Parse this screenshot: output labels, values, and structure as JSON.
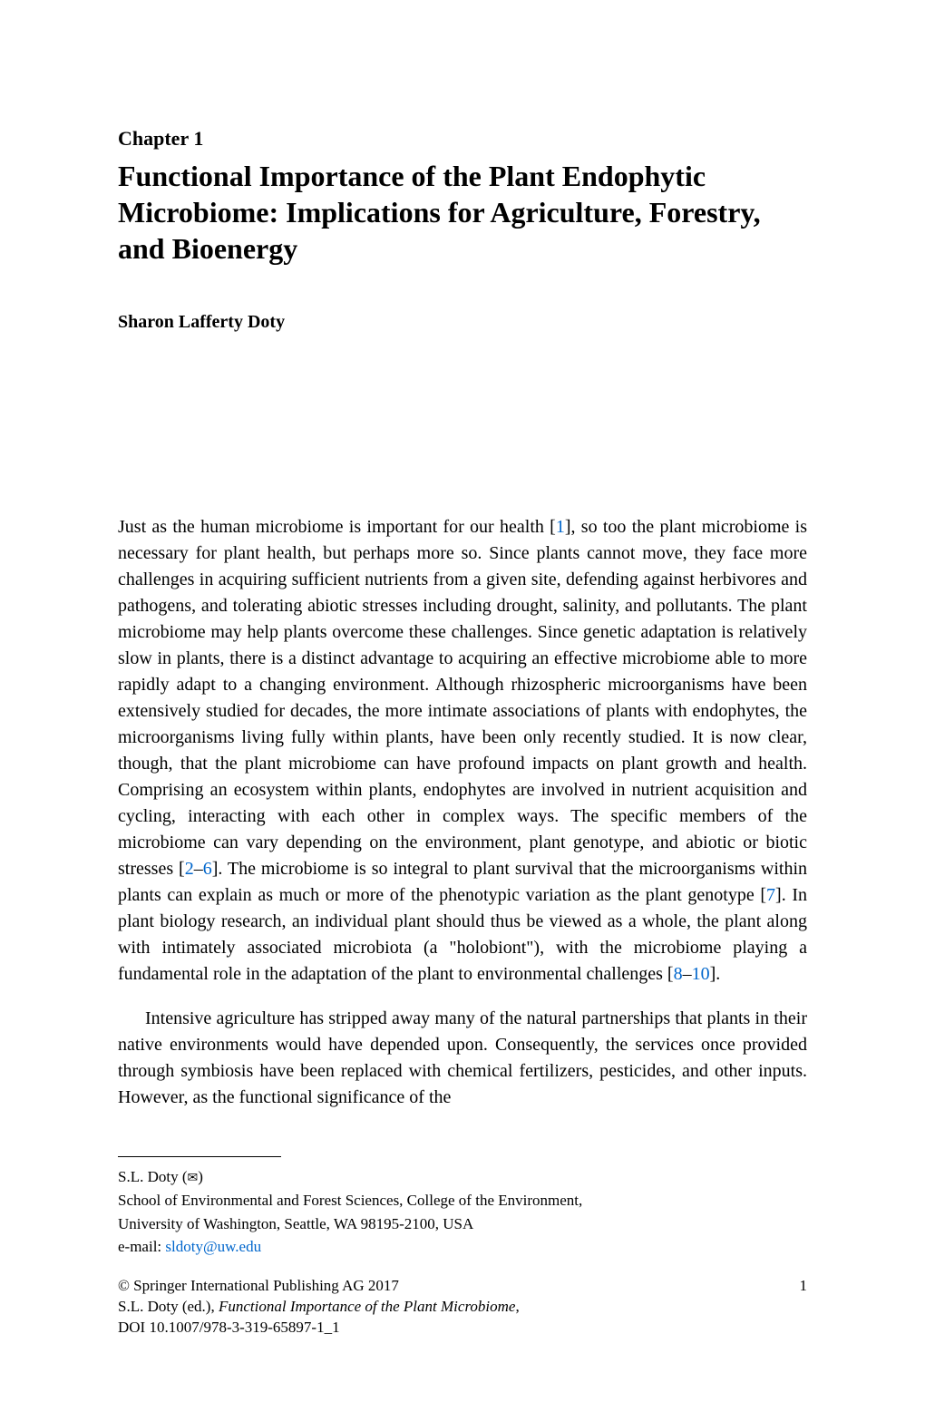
{
  "chapter": {
    "label": "Chapter 1",
    "title": "Functional Importance of the Plant Endophytic Microbiome: Implications for Agriculture, Forestry, and Bioenergy"
  },
  "author": "Sharon Lafferty Doty",
  "body": {
    "para1_a": "Just as the human microbiome is important for our health [",
    "cite1": "1",
    "para1_b": "], so too the plant microbiome is necessary for plant health, but perhaps more so. Since plants cannot move, they face more challenges in acquiring sufficient nutrients from a given site, defending against herbivores and pathogens, and tolerating abiotic stresses including drought, salinity, and pollutants. The plant microbiome may help plants overcome these challenges. Since genetic adaptation is relatively slow in plants, there is a distinct advantage to acquiring an effective microbiome able to more rapidly adapt to a changing environment. Although rhizospheric microorganisms have been extensively studied for decades, the more intimate associations of plants with endophytes, the microorganisms living fully within plants, have been only recently studied. It is now clear, though, that the plant microbiome can have profound impacts on plant growth and health. Comprising an ecosystem within plants, endophytes are involved in nutrient acquisition and cycling, interacting with each other in complex ways. The specific members of the microbiome can vary depending on the environment, plant genotype, and abiotic or biotic stresses [",
    "cite2": "2",
    "dash1": "–",
    "cite6": "6",
    "para1_c": "]. The microbiome is so integral to plant survival that the microorganisms within plants can explain as much or more of the phenotypic variation as the plant genotype [",
    "cite7": "7",
    "para1_d": "]. In plant biology research, an individual plant should thus be viewed as a whole, the plant along with intimately associated microbiota (a \"holobiont\"), with the microbiome playing a fundamental role in the adaptation of the plant to environmental challenges [",
    "cite8": "8",
    "dash2": "–",
    "cite10": "10",
    "para1_e": "].",
    "para2": "Intensive agriculture has stripped away many of the natural partnerships that plants in their native environments would have depended upon. Consequently, the services once provided through symbiosis have been replaced with chemical fertilizers, pesticides, and other inputs. However, as the functional significance of the"
  },
  "footnote": {
    "name": "S.L. Doty (",
    "envelope": "✉",
    "name_close": ")",
    "affil1": "School of Environmental and Forest Sciences, College of the Environment,",
    "affil2": "University of Washington, Seattle, WA 98195-2100, USA",
    "email_label": "e-mail: ",
    "email": "sldoty@uw.edu"
  },
  "copyright": {
    "line1": "© Springer International Publishing AG 2017",
    "page_num": "1",
    "line2_a": "S.L. Doty (ed.), ",
    "line2_title": "Functional Importance of the Plant Microbiome",
    "line2_b": ",",
    "line3": "DOI 10.1007/978-3-319-65897-1_1"
  },
  "style": {
    "body_fontsize": 20,
    "title_fontsize": 32,
    "author_fontsize": 20,
    "footnote_fontsize": 17,
    "link_color": "#0066cc",
    "text_color": "#000000",
    "background_color": "#ffffff"
  }
}
